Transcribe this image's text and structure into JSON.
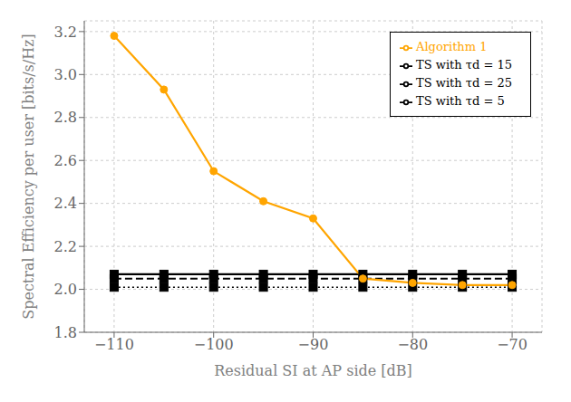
{
  "chart_data": {
    "type": "line",
    "xlabel": "Residual SI at AP side [dB]",
    "ylabel": "Spectral Efficiency per user [bits/s/Hz]",
    "x": [
      -110,
      -105,
      -100,
      -95,
      -90,
      -85,
      -80,
      -75,
      -70
    ],
    "series": [
      {
        "name": "TS with τd = 5",
        "color": "#000000",
        "marker": "square",
        "line_style": "dotted",
        "values": [
          2.01,
          2.01,
          2.01,
          2.01,
          2.01,
          2.01,
          2.01,
          2.01,
          2.01
        ]
      },
      {
        "name": "TS with τd = 15",
        "color": "#000000",
        "marker": "square",
        "line_style": "dashed",
        "values": [
          2.05,
          2.05,
          2.05,
          2.05,
          2.05,
          2.05,
          2.05,
          2.05,
          2.05
        ]
      },
      {
        "name": "TS with τd = 25",
        "color": "#000000",
        "marker": "square",
        "line_style": "solid",
        "values": [
          2.07,
          2.07,
          2.07,
          2.07,
          2.07,
          2.07,
          2.07,
          2.07,
          2.07
        ]
      },
      {
        "name": "Algorithm 1",
        "color": "#FFA500",
        "marker": "circle",
        "line_style": "solid",
        "values": [
          3.18,
          2.93,
          2.55,
          2.41,
          2.33,
          2.05,
          2.03,
          2.02,
          2.02
        ]
      }
    ],
    "xlim": [
      -113,
      -67
    ],
    "ylim": [
      1.8,
      3.25
    ],
    "xticks": [
      {
        "value": -110,
        "label": "−110"
      },
      {
        "value": -100,
        "label": "−100"
      },
      {
        "value": -90,
        "label": "−90"
      },
      {
        "value": -80,
        "label": "−80"
      },
      {
        "value": -70,
        "label": "−70"
      }
    ],
    "yticks": [
      1.8,
      {
        "value": 2.0,
        "label": "2.0"
      },
      2.2,
      2.4,
      2.6,
      2.8,
      {
        "value": 3.0,
        "label": "3.0"
      },
      3.2
    ],
    "grid": true,
    "legend": "upper right"
  }
}
